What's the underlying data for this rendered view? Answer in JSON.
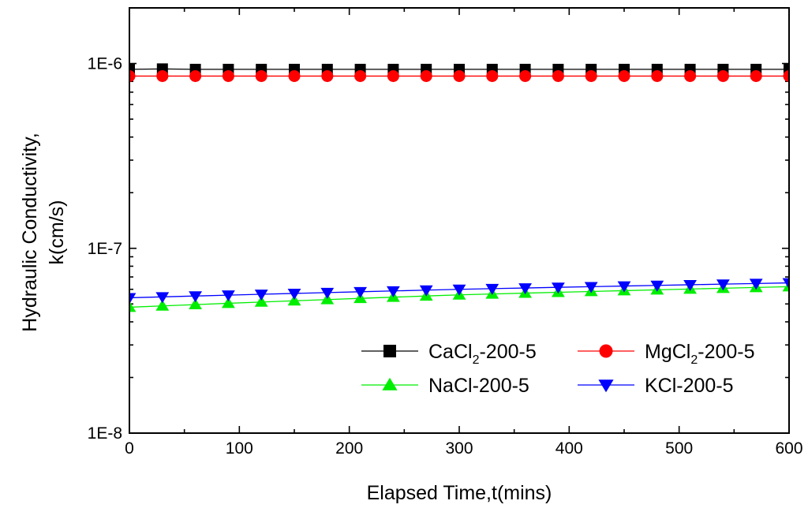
{
  "chart_data": {
    "type": "line",
    "title": "",
    "xlabel": "Elapsed Time,t(mins)",
    "ylabel_line1": "Hydraulic Conductivity,",
    "ylabel_line2": "k(cm/s)",
    "xlim": [
      0,
      600
    ],
    "ylim": [
      1e-08,
      2e-06
    ],
    "yscale": "log",
    "xticks": [
      0,
      100,
      200,
      300,
      400,
      500,
      600
    ],
    "xtick_labels": [
      "0",
      "100",
      "200",
      "300",
      "400",
      "500",
      "600"
    ],
    "yticks": [
      1e-08,
      1e-07,
      1e-06
    ],
    "ytick_labels": [
      "1E-8",
      "1E-7",
      "1E-6"
    ],
    "grid": false,
    "legend_position": "lower-right",
    "x": [
      0,
      30,
      60,
      90,
      120,
      150,
      180,
      210,
      240,
      270,
      300,
      330,
      360,
      390,
      420,
      450,
      480,
      510,
      540,
      570,
      600
    ],
    "series": [
      {
        "name": "CaCl2-200-5",
        "label_main": "CaCl",
        "label_sub": "2",
        "label_tail": "-200-5",
        "color": "#000000",
        "marker": "square",
        "values": [
          9.3e-07,
          9.35e-07,
          9.3e-07,
          9.3e-07,
          9.3e-07,
          9.3e-07,
          9.3e-07,
          9.3e-07,
          9.3e-07,
          9.3e-07,
          9.3e-07,
          9.3e-07,
          9.3e-07,
          9.3e-07,
          9.3e-07,
          9.3e-07,
          9.3e-07,
          9.3e-07,
          9.3e-07,
          9.3e-07,
          9.3e-07
        ]
      },
      {
        "name": "MgCl2-200-5",
        "label_main": "MgCl",
        "label_sub": "2",
        "label_tail": "-200-5",
        "color": "#ff0000",
        "marker": "circle",
        "values": [
          8.55e-07,
          8.55e-07,
          8.55e-07,
          8.55e-07,
          8.55e-07,
          8.55e-07,
          8.55e-07,
          8.55e-07,
          8.55e-07,
          8.55e-07,
          8.55e-07,
          8.55e-07,
          8.55e-07,
          8.55e-07,
          8.55e-07,
          8.55e-07,
          8.55e-07,
          8.55e-07,
          8.55e-07,
          8.55e-07,
          8.55e-07
        ]
      },
      {
        "name": "NaCl-200-5",
        "label_main": "NaCl-200-5",
        "label_sub": "",
        "label_tail": "",
        "color": "#00ee00",
        "marker": "triangle-up",
        "values": [
          4.8e-08,
          4.88e-08,
          4.96e-08,
          5.04e-08,
          5.12e-08,
          5.2e-08,
          5.28e-08,
          5.36e-08,
          5.44e-08,
          5.52e-08,
          5.6e-08,
          5.66e-08,
          5.72e-08,
          5.78e-08,
          5.84e-08,
          5.9e-08,
          5.96e-08,
          6.02e-08,
          6.08e-08,
          6.14e-08,
          6.2e-08
        ]
      },
      {
        "name": "KCl-200-5",
        "label_main": "KCl-200-5",
        "label_sub": "",
        "label_tail": "",
        "color": "#0000ff",
        "marker": "triangle-down",
        "values": [
          5.4e-08,
          5.46e-08,
          5.52e-08,
          5.58e-08,
          5.64e-08,
          5.7e-08,
          5.76e-08,
          5.82e-08,
          5.88e-08,
          5.94e-08,
          6e-08,
          6.05e-08,
          6.1e-08,
          6.15e-08,
          6.2e-08,
          6.25e-08,
          6.3e-08,
          6.35e-08,
          6.4e-08,
          6.45e-08,
          6.5e-08
        ]
      }
    ]
  }
}
